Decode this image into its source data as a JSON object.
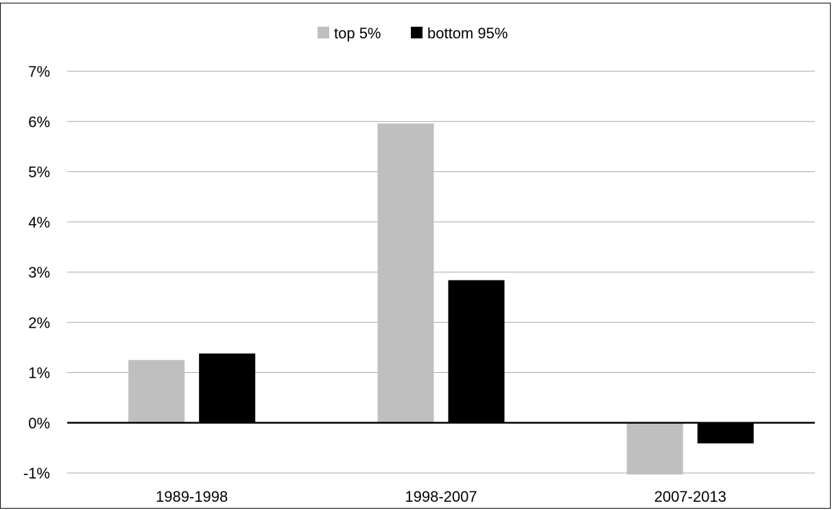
{
  "chart_data": {
    "type": "bar",
    "categories": [
      "1989-1998",
      "1998-2007",
      "2007-2013"
    ],
    "series": [
      {
        "name": "top 5%",
        "values": [
          1.25,
          5.96,
          -1.03
        ],
        "color": "#bfbfbf"
      },
      {
        "name": "bottom 95%",
        "values": [
          1.38,
          2.84,
          -0.41
        ],
        "color": "#000000"
      }
    ],
    "ylim": [
      -1,
      7
    ],
    "yticks": [
      -1,
      0,
      1,
      2,
      3,
      4,
      5,
      6,
      7
    ],
    "ytick_labels": [
      "-1%",
      "0%",
      "1%",
      "2%",
      "3%",
      "4%",
      "5%",
      "6%",
      "7%"
    ],
    "grid": true,
    "legend_position": "top-center",
    "title": "",
    "xlabel": "",
    "ylabel": ""
  }
}
